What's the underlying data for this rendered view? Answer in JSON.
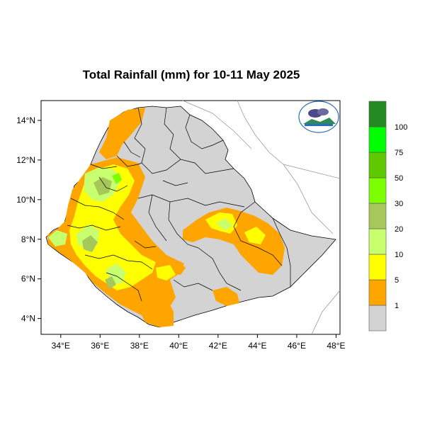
{
  "title": "Total Rainfall (mm) for 10-11 May 2025",
  "map": {
    "lon_range": [
      33.0,
      48.2
    ],
    "lat_range": [
      3.2,
      15.0
    ],
    "x_ticks": [
      "34°E",
      "36°E",
      "38°E",
      "40°E",
      "42°E",
      "44°E",
      "46°E",
      "48°E"
    ],
    "x_tick_values": [
      34,
      36,
      38,
      40,
      42,
      44,
      46,
      48
    ],
    "y_ticks": [
      "14°N",
      "12°N",
      "10°N",
      "8°N",
      "6°N",
      "4°N"
    ],
    "y_tick_values": [
      14,
      12,
      10,
      8,
      6,
      4
    ]
  },
  "legend": {
    "bins": [
      {
        "label": "1",
        "color": "#d3d3d3"
      },
      {
        "label": "5",
        "color": "#ffa500"
      },
      {
        "label": "10",
        "color": "#ffff00"
      },
      {
        "label": "20",
        "color": "#c8ff6e"
      },
      {
        "label": "30",
        "color": "#a6c85a"
      },
      {
        "label": "50",
        "color": "#7cff00"
      },
      {
        "label": "75",
        "color": "#5ec800"
      },
      {
        "label": "100",
        "color": "#00ff00"
      },
      {
        "label": "",
        "color": "#228b22"
      }
    ]
  },
  "colors": {
    "base": "#d3d3d3",
    "orange": "#ffa500",
    "yellow": "#ffff00",
    "light_green": "#c8ff6e",
    "olive": "#a6c85a",
    "green": "#7cff00"
  },
  "logo": {
    "icon": "met-agency-logo-icon"
  }
}
